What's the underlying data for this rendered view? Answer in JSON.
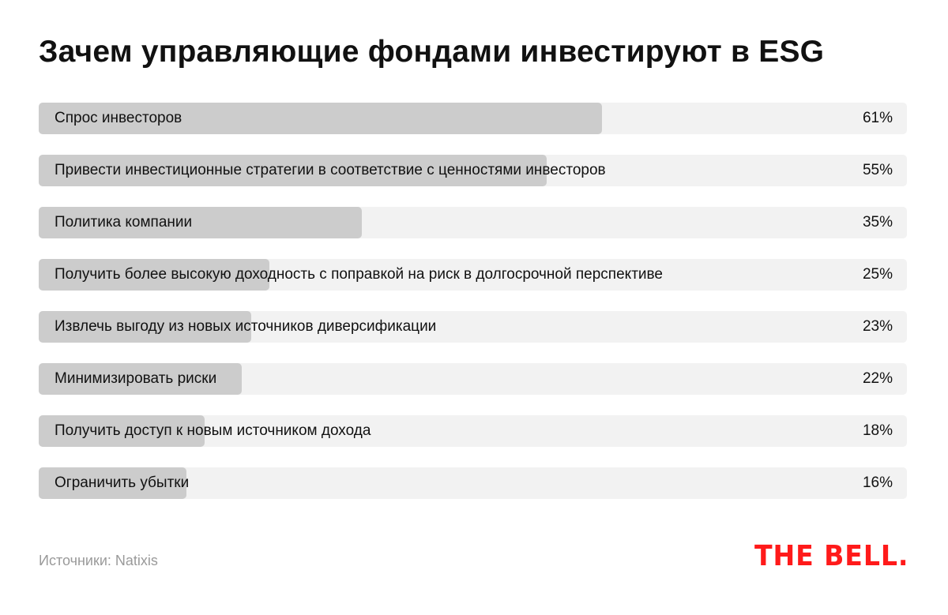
{
  "chart_data": {
    "type": "bar",
    "orientation": "horizontal",
    "title": "Зачем управляющие фондами инвестируют в ESG",
    "categories": [
      "Спрос инвесторов",
      "Привести инвестиционные стратегии в соответствие с ценностями инвесторов",
      "Политика компании",
      "Получить более высокую доходность с поправкой на риск в долгосрочной перспективе",
      "Извлечь выгоду из новых источников диверсификации",
      "Минимизировать риски",
      "Получить доступ к новым источником дохода",
      "Ограничить убытки"
    ],
    "values": [
      61,
      55,
      35,
      25,
      23,
      22,
      18,
      16
    ],
    "value_labels": [
      "61%",
      "55%",
      "35%",
      "25%",
      "23%",
      "22%",
      "18%",
      "16%"
    ],
    "xlim": [
      0,
      94
    ],
    "unit": "%",
    "grid": false,
    "colors": {
      "bar": "#cccccc",
      "track": "#f2f2f2"
    }
  },
  "source": "Источники: Natixis",
  "logo": "THE BELL."
}
